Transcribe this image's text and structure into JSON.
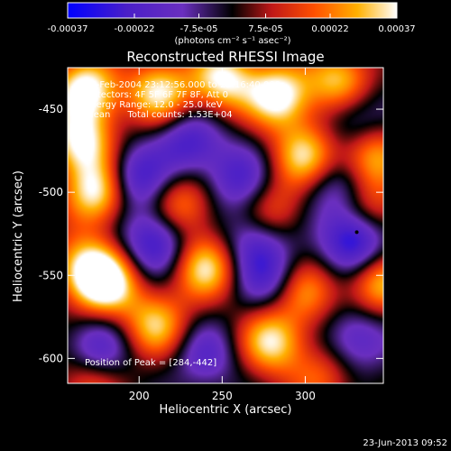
{
  "colorbar": {
    "tick_labels": [
      "-0.00037",
      "-0.00022",
      "-7.5e-05",
      "7.5e-05",
      "0.00022",
      "0.00037"
    ],
    "tick_values": [
      -0.00037,
      -0.00022,
      -7.5e-05,
      7.5e-05,
      0.00022,
      0.00037
    ],
    "range": [
      -0.00037,
      0.00037
    ],
    "units_text": "(photons cm⁻² s⁻¹ asec⁻²)"
  },
  "chart_data": {
    "type": "heatmap",
    "title": "Reconstructed RHESSI Image",
    "xlabel": "Heliocentric X (arcsec)",
    "ylabel": "Heliocentric Y (arcsec)",
    "xlim": [
      157,
      347
    ],
    "ylim": [
      -615,
      -425
    ],
    "x_ticks": [
      200,
      250,
      300
    ],
    "y_ticks": [
      -450,
      -500,
      -550,
      -600
    ],
    "annotations": [
      "28-Feb-2004 23:12:56.000 to 23:16:40.000",
      "Detectors: 4F 5F 6F 7F 8F, Att 0",
      "Energy Range: 12.0 - 25.0 keV",
      "Clean      Total counts: 1.53E+04"
    ],
    "peak_label": "Position of Peak = [284,-442]",
    "peak": [
      284,
      -442
    ],
    "marker": [
      331,
      -524
    ],
    "blobs": [
      {
        "x": 168,
        "y": -438,
        "v": 1.0
      },
      {
        "x": 212,
        "y": -440,
        "v": 0.85
      },
      {
        "x": 250,
        "y": -432,
        "v": 0.9
      },
      {
        "x": 284,
        "y": -442,
        "v": 1.0
      },
      {
        "x": 320,
        "y": -432,
        "v": 0.75
      },
      {
        "x": 165,
        "y": -470,
        "v": 0.9
      },
      {
        "x": 300,
        "y": -478,
        "v": 0.8
      },
      {
        "x": 340,
        "y": -478,
        "v": 0.7
      },
      {
        "x": 230,
        "y": -470,
        "v": -0.6
      },
      {
        "x": 330,
        "y": -458,
        "v": -0.4
      },
      {
        "x": 175,
        "y": -500,
        "v": 0.95
      },
      {
        "x": 225,
        "y": -508,
        "v": 0.6
      },
      {
        "x": 198,
        "y": -492,
        "v": -0.7
      },
      {
        "x": 260,
        "y": -492,
        "v": -0.55
      },
      {
        "x": 280,
        "y": -512,
        "v": 0.5
      },
      {
        "x": 318,
        "y": -498,
        "v": -0.4
      },
      {
        "x": 340,
        "y": -512,
        "v": 0.55
      },
      {
        "x": 210,
        "y": -530,
        "v": -0.75
      },
      {
        "x": 270,
        "y": -530,
        "v": -0.55
      },
      {
        "x": 330,
        "y": -528,
        "v": -0.95
      },
      {
        "x": 168,
        "y": -545,
        "v": 0.7
      },
      {
        "x": 180,
        "y": -555,
        "v": 0.95
      },
      {
        "x": 240,
        "y": -545,
        "v": 0.85
      },
      {
        "x": 300,
        "y": -560,
        "v": 0.6
      },
      {
        "x": 345,
        "y": -555,
        "v": 0.7
      },
      {
        "x": 278,
        "y": -552,
        "v": -0.5
      },
      {
        "x": 210,
        "y": -580,
        "v": 0.75
      },
      {
        "x": 280,
        "y": -590,
        "v": 0.85
      },
      {
        "x": 330,
        "y": -588,
        "v": -0.5
      },
      {
        "x": 175,
        "y": -595,
        "v": -0.55
      },
      {
        "x": 240,
        "y": -598,
        "v": -0.45
      },
      {
        "x": 170,
        "y": -615,
        "v": 0.5
      },
      {
        "x": 310,
        "y": -612,
        "v": 0.45
      }
    ]
  },
  "footer": {
    "timestamp": "23-Jun-2013 09:52"
  }
}
